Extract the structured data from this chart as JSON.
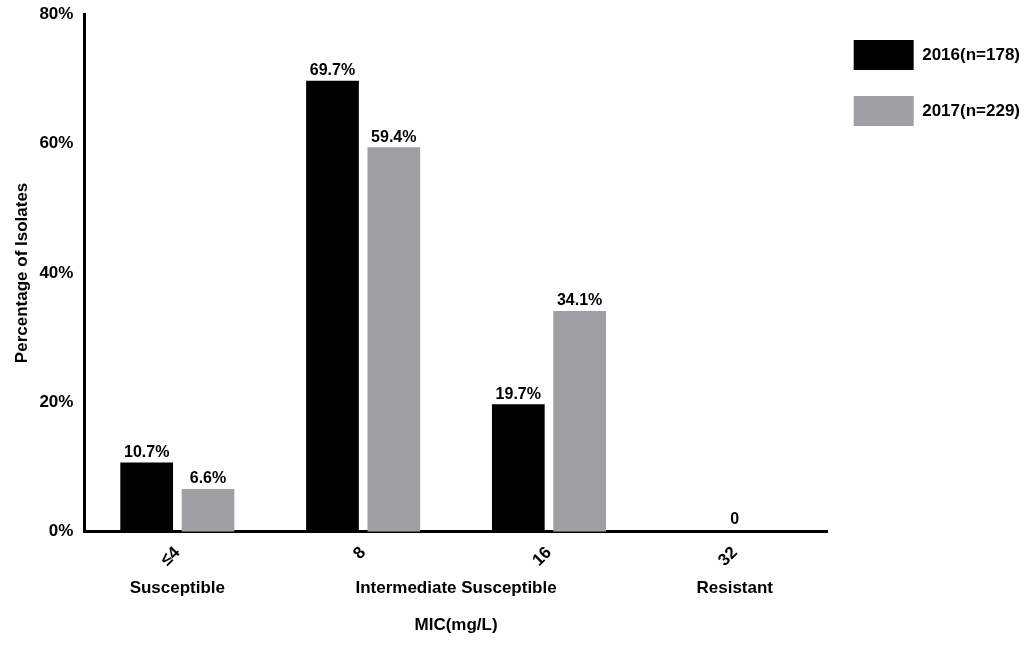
{
  "chart_data": {
    "type": "bar",
    "xlabel": "MIC(mg/L)",
    "ylabel": "Percentage of Isolates",
    "categories": [
      "≤4",
      "8",
      "16",
      "32"
    ],
    "series": [
      {
        "name": "2016(n=178)",
        "color": "#000000",
        "values": [
          10.7,
          69.7,
          19.7,
          0
        ],
        "value_labels": [
          "10.7%",
          "69.7%",
          "19.7%",
          null
        ]
      },
      {
        "name": "2017(n=229)",
        "color": "#a0a0a4",
        "values": [
          6.6,
          59.4,
          34.1,
          0
        ],
        "value_labels": [
          "6.6%",
          "59.4%",
          "34.1%",
          null
        ]
      }
    ],
    "ylim": [
      0,
      80
    ],
    "yticks": [
      {
        "value": 0,
        "label": "0%"
      },
      {
        "value": 20,
        "label": "20%"
      },
      {
        "value": 40,
        "label": "40%"
      },
      {
        "value": 60,
        "label": "60%"
      },
      {
        "value": 80,
        "label": "80%"
      }
    ],
    "grid": false,
    "legend": "top right",
    "annotations": [
      {
        "text": "0",
        "x": "32",
        "y": 0
      },
      "Susceptible",
      "Intermediate Susceptible",
      "Resistant"
    ]
  }
}
